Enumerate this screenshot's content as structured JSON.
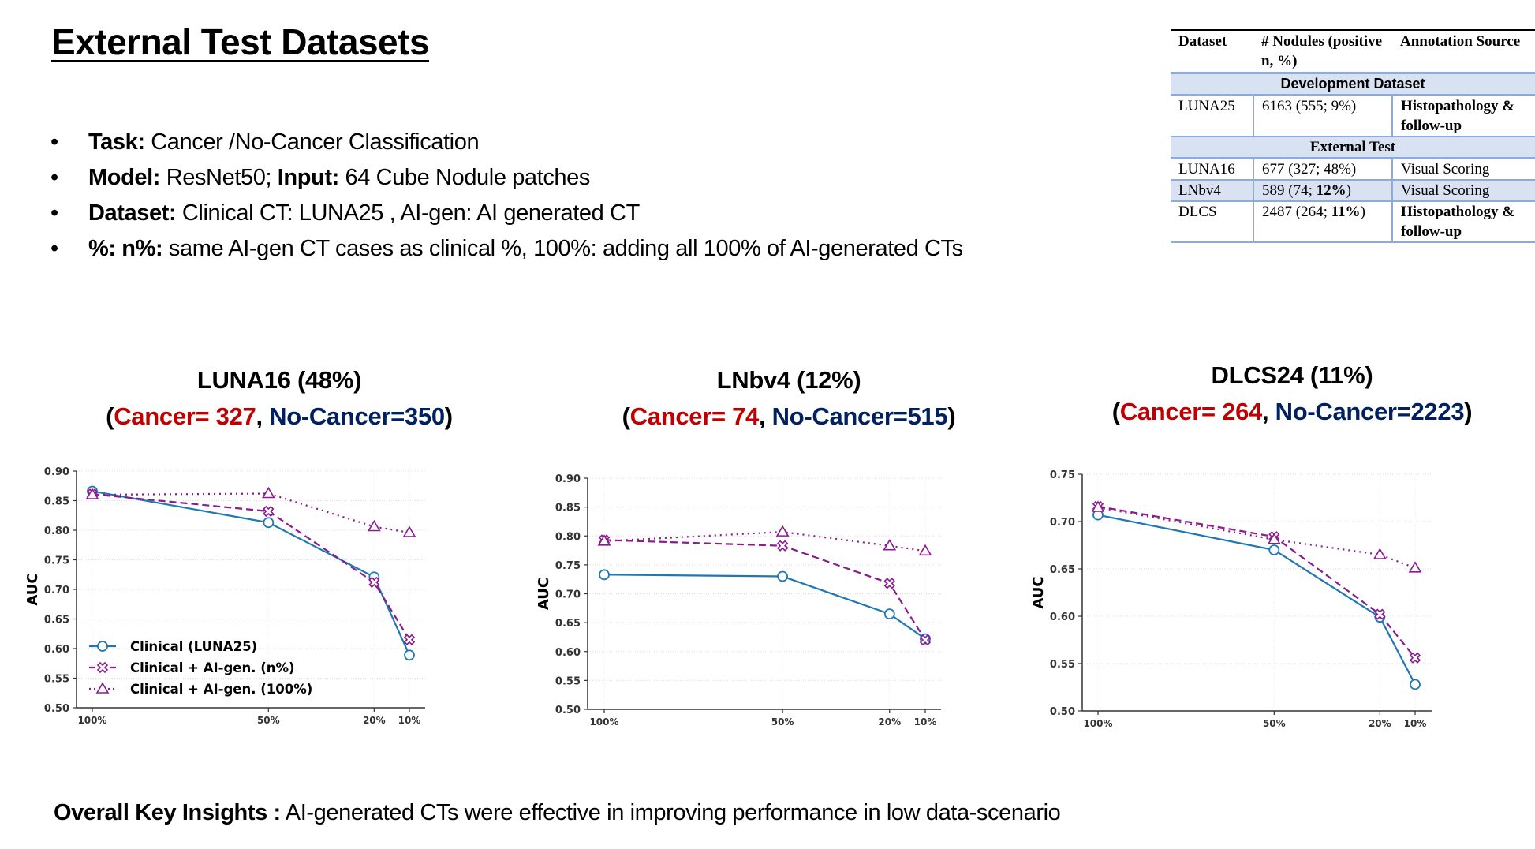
{
  "title": "External Test Datasets",
  "bullets": [
    {
      "label": "Task:",
      "text": " Cancer /No-Cancer Classification"
    },
    {
      "label": "Model:",
      "text": " ResNet50; ",
      "label2": "Input:",
      "text2": " 64 Cube Nodule patches"
    },
    {
      "label": "Dataset:",
      "text": " Clinical CT: LUNA25 , AI-gen: AI generated CT"
    },
    {
      "label": "%: n%:",
      "text": " same AI-gen CT cases as clinical %, 100%: adding all 100% of AI-generated CTs"
    }
  ],
  "table": {
    "headers": [
      "Dataset",
      "# Nodules (positive n, %)",
      "Annotation Source"
    ],
    "development_label": "Development Dataset",
    "development_rows": [
      {
        "dataset": "LUNA25",
        "nodules": "6163 (555; 9%)",
        "source": "Histopathology & follow-up"
      }
    ],
    "external_label": "External Test",
    "external_rows": [
      {
        "dataset": "LUNA16",
        "nodules": "677 (327; 48%)",
        "nodules_a": "677 (327; ",
        "nodules_b": "48%",
        "nodules_c": ")",
        "source": "Visual Scoring"
      },
      {
        "dataset": "LNbv4",
        "nodules": "589 (74; 12%)",
        "nodules_a": "589 (74; ",
        "nodules_b": "12%",
        "nodules_c": ")",
        "source": "Visual Scoring"
      },
      {
        "dataset": "DLCS",
        "nodules": "2487 (264; 11%)",
        "nodules_a": "2487 (264; ",
        "nodules_b": "11%",
        "nodules_c": ")",
        "source": "Histopathology & follow-up"
      }
    ]
  },
  "colors": {
    "clinical": "#1f77b4",
    "aigen": "#8b1a8f",
    "cancer": "#c00000",
    "no_cancer": "#002060",
    "table_band": "#d9e2f3",
    "table_line": "#8eaadb"
  },
  "chart_data": [
    {
      "type": "line",
      "title": "LUNA16 (48%)",
      "cancer": "Cancer= 327",
      "no_cancer": "No-Cancer=350",
      "x": [
        100,
        50,
        20,
        10
      ],
      "x_tick_labels": [
        "100%",
        "50%",
        "20%",
        "10%"
      ],
      "x_reversed": true,
      "ylabel": "AUC",
      "ylim": [
        0.5,
        0.9
      ],
      "yticks": [
        "0.50",
        "0.55",
        "0.60",
        "0.65",
        "0.70",
        "0.75",
        "0.80",
        "0.85",
        "0.90"
      ],
      "grid": true,
      "legend": "lower-left",
      "series": [
        {
          "name": "Clinical (LUNA25)",
          "marker": "circle",
          "style": "solid",
          "values": [
            0.866,
            0.813,
            0.721,
            0.589
          ]
        },
        {
          "name": "Clinical + AI-gen. (n%)",
          "marker": "x",
          "style": "dashed",
          "values": [
            0.861,
            0.832,
            0.712,
            0.615
          ]
        },
        {
          "name": "Clinical + AI-gen. (100%)",
          "marker": "triangle",
          "style": "dotted",
          "values": [
            0.86,
            0.862,
            0.806,
            0.796
          ]
        }
      ]
    },
    {
      "type": "line",
      "title": "LNbv4 (12%)",
      "cancer": "Cancer= 74",
      "no_cancer": "No-Cancer=515",
      "x": [
        100,
        50,
        20,
        10
      ],
      "x_tick_labels": [
        "100%",
        "50%",
        "20%",
        "10%"
      ],
      "x_reversed": true,
      "ylabel": "AUC",
      "ylim": [
        0.5,
        0.9
      ],
      "yticks": [
        "0.50",
        "0.55",
        "0.60",
        "0.65",
        "0.70",
        "0.75",
        "0.80",
        "0.85",
        "0.90"
      ],
      "grid": true,
      "series": [
        {
          "marker": "circle",
          "style": "solid",
          "values": [
            0.733,
            0.73,
            0.665,
            0.622
          ]
        },
        {
          "marker": "x",
          "style": "dashed",
          "values": [
            0.793,
            0.783,
            0.718,
            0.62
          ]
        },
        {
          "marker": "triangle",
          "style": "dotted",
          "values": [
            0.791,
            0.807,
            0.783,
            0.774
          ]
        }
      ]
    },
    {
      "type": "line",
      "title": "DLCS24 (11%)",
      "cancer": "Cancer= 264",
      "no_cancer": "No-Cancer=2223",
      "x": [
        100,
        50,
        20,
        10
      ],
      "x_tick_labels": [
        "100%",
        "50%",
        "20%",
        "10%"
      ],
      "x_reversed": true,
      "ylabel": "AUC",
      "ylim": [
        0.5,
        0.75
      ],
      "yticks": [
        "0.50",
        "0.55",
        "0.60",
        "0.65",
        "0.70",
        "0.75"
      ],
      "grid": true,
      "series": [
        {
          "marker": "circle",
          "style": "solid",
          "values": [
            0.707,
            0.67,
            0.599,
            0.528
          ]
        },
        {
          "marker": "x",
          "style": "dashed",
          "values": [
            0.716,
            0.684,
            0.602,
            0.556
          ]
        },
        {
          "marker": "triangle",
          "style": "dotted",
          "values": [
            0.715,
            0.681,
            0.665,
            0.651
          ]
        }
      ]
    }
  ],
  "insight": {
    "label": "Overall Key Insights :",
    "text": " AI-generated CTs were effective in improving performance in low data-scenario"
  }
}
